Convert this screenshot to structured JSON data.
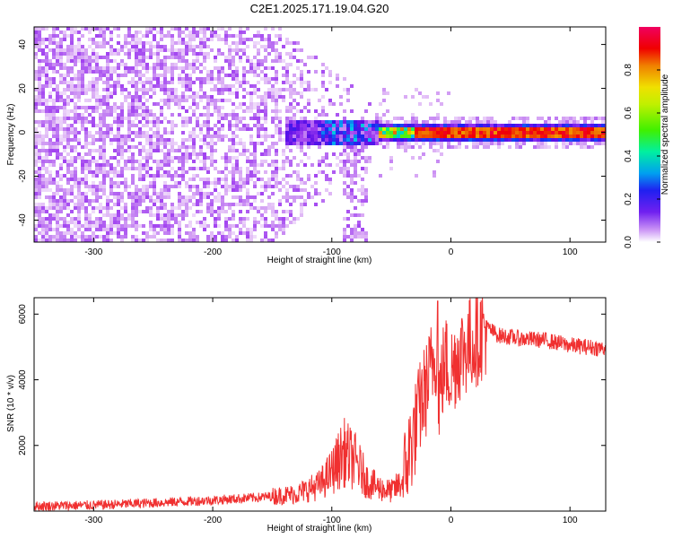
{
  "title": "C2E1.2025.171.19.04.G20",
  "chart_data": [
    {
      "type": "heatmap",
      "xlabel": "Height of straight line (km)",
      "ylabel": "Frequency (Hz)",
      "xlim": [
        -350,
        130
      ],
      "ylim": [
        -50,
        48
      ],
      "x_ticks": [
        -300,
        -200,
        -100,
        0,
        100
      ],
      "y_ticks": [
        -40,
        -20,
        0,
        20,
        40
      ],
      "colorbar": {
        "label": "Normalized spectral amplitude",
        "range": [
          0,
          1
        ],
        "ticks": [
          0.0,
          0.2,
          0.4,
          0.6,
          0.8
        ],
        "tick_labels": [
          "0.0",
          "0.2",
          "0.4",
          "0.6",
          "0.8"
        ],
        "colormap": [
          "#ffffff",
          "#dcb0f5",
          "#a040f0",
          "#6010e8",
          "#2020f0",
          "#00c0f0",
          "#00f080",
          "#60f000",
          "#f0f000",
          "#f08000",
          "#f00000",
          "#f00080"
        ]
      },
      "features": [
        {
          "x_range": [
            -350,
            -150
          ],
          "description_level": "scattered broadband purple noise across all frequencies"
        },
        {
          "x_range": [
            -150,
            -60
          ],
          "description_level": "noise narrowing toward 0 Hz, blue/green patches near 0 Hz"
        },
        {
          "x_range": [
            -60,
            130
          ],
          "description_level": "narrow carrier line at 0 Hz, peak amplitude ~0.9 near x -60 to 100"
        }
      ]
    },
    {
      "type": "line",
      "xlabel": "Height of straight line (km)",
      "ylabel": "SNR (10 * v/v)",
      "xlim": [
        -350,
        130
      ],
      "ylim": [
        0,
        6500
      ],
      "x_ticks": [
        -300,
        -200,
        -100,
        0,
        100
      ],
      "y_ticks": [
        2000,
        4000,
        6000
      ],
      "series": [
        {
          "color": "#f03030",
          "x": [
            -350,
            -300,
            -250,
            -200,
            -160,
            -130,
            -110,
            -100,
            -90,
            -80,
            -70,
            -60,
            -50,
            -40,
            -35,
            -30,
            -25,
            -20,
            -15,
            -12,
            -10,
            -5,
            0,
            5,
            10,
            20,
            30,
            40,
            60,
            80,
            100,
            130
          ],
          "y": [
            150,
            180,
            250,
            330,
            420,
            520,
            800,
            1200,
            1800,
            1500,
            900,
            700,
            600,
            900,
            1800,
            2500,
            3300,
            3800,
            4600,
            5000,
            3500,
            4600,
            4200,
            4700,
            4900,
            5200,
            5600,
            5350,
            5250,
            5200,
            5050,
            4950
          ]
        }
      ],
      "annotations": {
        "spike_peak": {
          "x": -11,
          "y": 6400
        }
      }
    }
  ]
}
